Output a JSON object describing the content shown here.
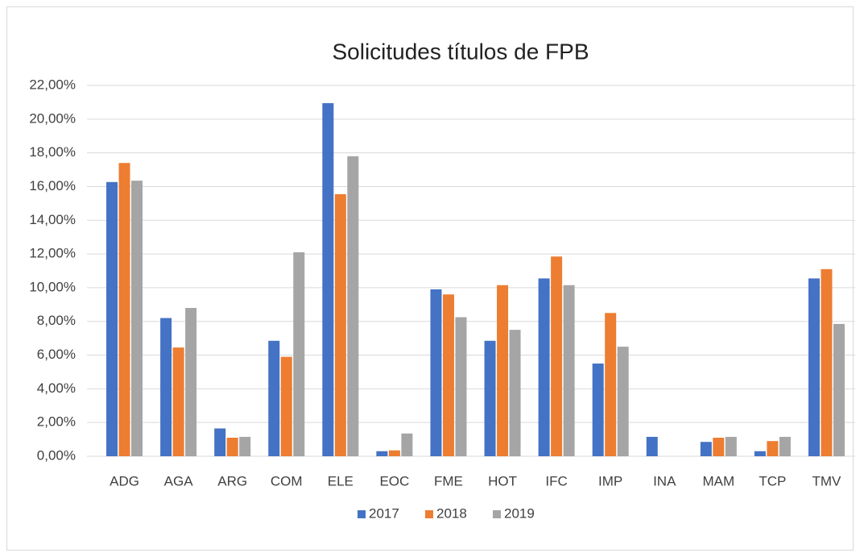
{
  "chart_data": {
    "type": "bar",
    "title": "Solicitudes títulos de FPB",
    "categories": [
      "ADG",
      "AGA",
      "ARG",
      "COM",
      "ELE",
      "EOC",
      "FME",
      "HOT",
      "IFC",
      "IMP",
      "INA",
      "MAM",
      "TCP",
      "TMV"
    ],
    "series": [
      {
        "name": "2017",
        "color": "#4472c4",
        "values": [
          16.27,
          8.2,
          1.65,
          6.85,
          20.95,
          0.3,
          9.9,
          6.85,
          10.55,
          5.5,
          1.15,
          0.85,
          0.3,
          10.55
        ]
      },
      {
        "name": "2018",
        "color": "#ed7d31",
        "values": [
          17.4,
          6.45,
          1.1,
          5.9,
          15.55,
          0.35,
          9.6,
          10.15,
          11.85,
          8.5,
          0,
          1.1,
          0.9,
          11.1
        ]
      },
      {
        "name": "2019",
        "color": "#a5a5a5",
        "values": [
          16.35,
          8.8,
          1.15,
          12.1,
          17.8,
          1.35,
          8.25,
          7.5,
          10.15,
          6.5,
          0,
          1.15,
          1.15,
          7.85
        ]
      }
    ],
    "ylim": [
      0,
      22
    ],
    "yticks": [
      {
        "value": 0,
        "label": "0,00%"
      },
      {
        "value": 2,
        "label": "2,00%"
      },
      {
        "value": 4,
        "label": "4,00%"
      },
      {
        "value": 6,
        "label": "6,00%"
      },
      {
        "value": 8,
        "label": "8,00%"
      },
      {
        "value": 10,
        "label": "10,00%"
      },
      {
        "value": 12,
        "label": "12,00%"
      },
      {
        "value": 14,
        "label": "14,00%"
      },
      {
        "value": 16,
        "label": "16,00%"
      },
      {
        "value": 18,
        "label": "18,00%"
      },
      {
        "value": 20,
        "label": "20,00%"
      },
      {
        "value": 22,
        "label": "22,00%"
      }
    ],
    "grid": true,
    "legend": "bottom"
  }
}
